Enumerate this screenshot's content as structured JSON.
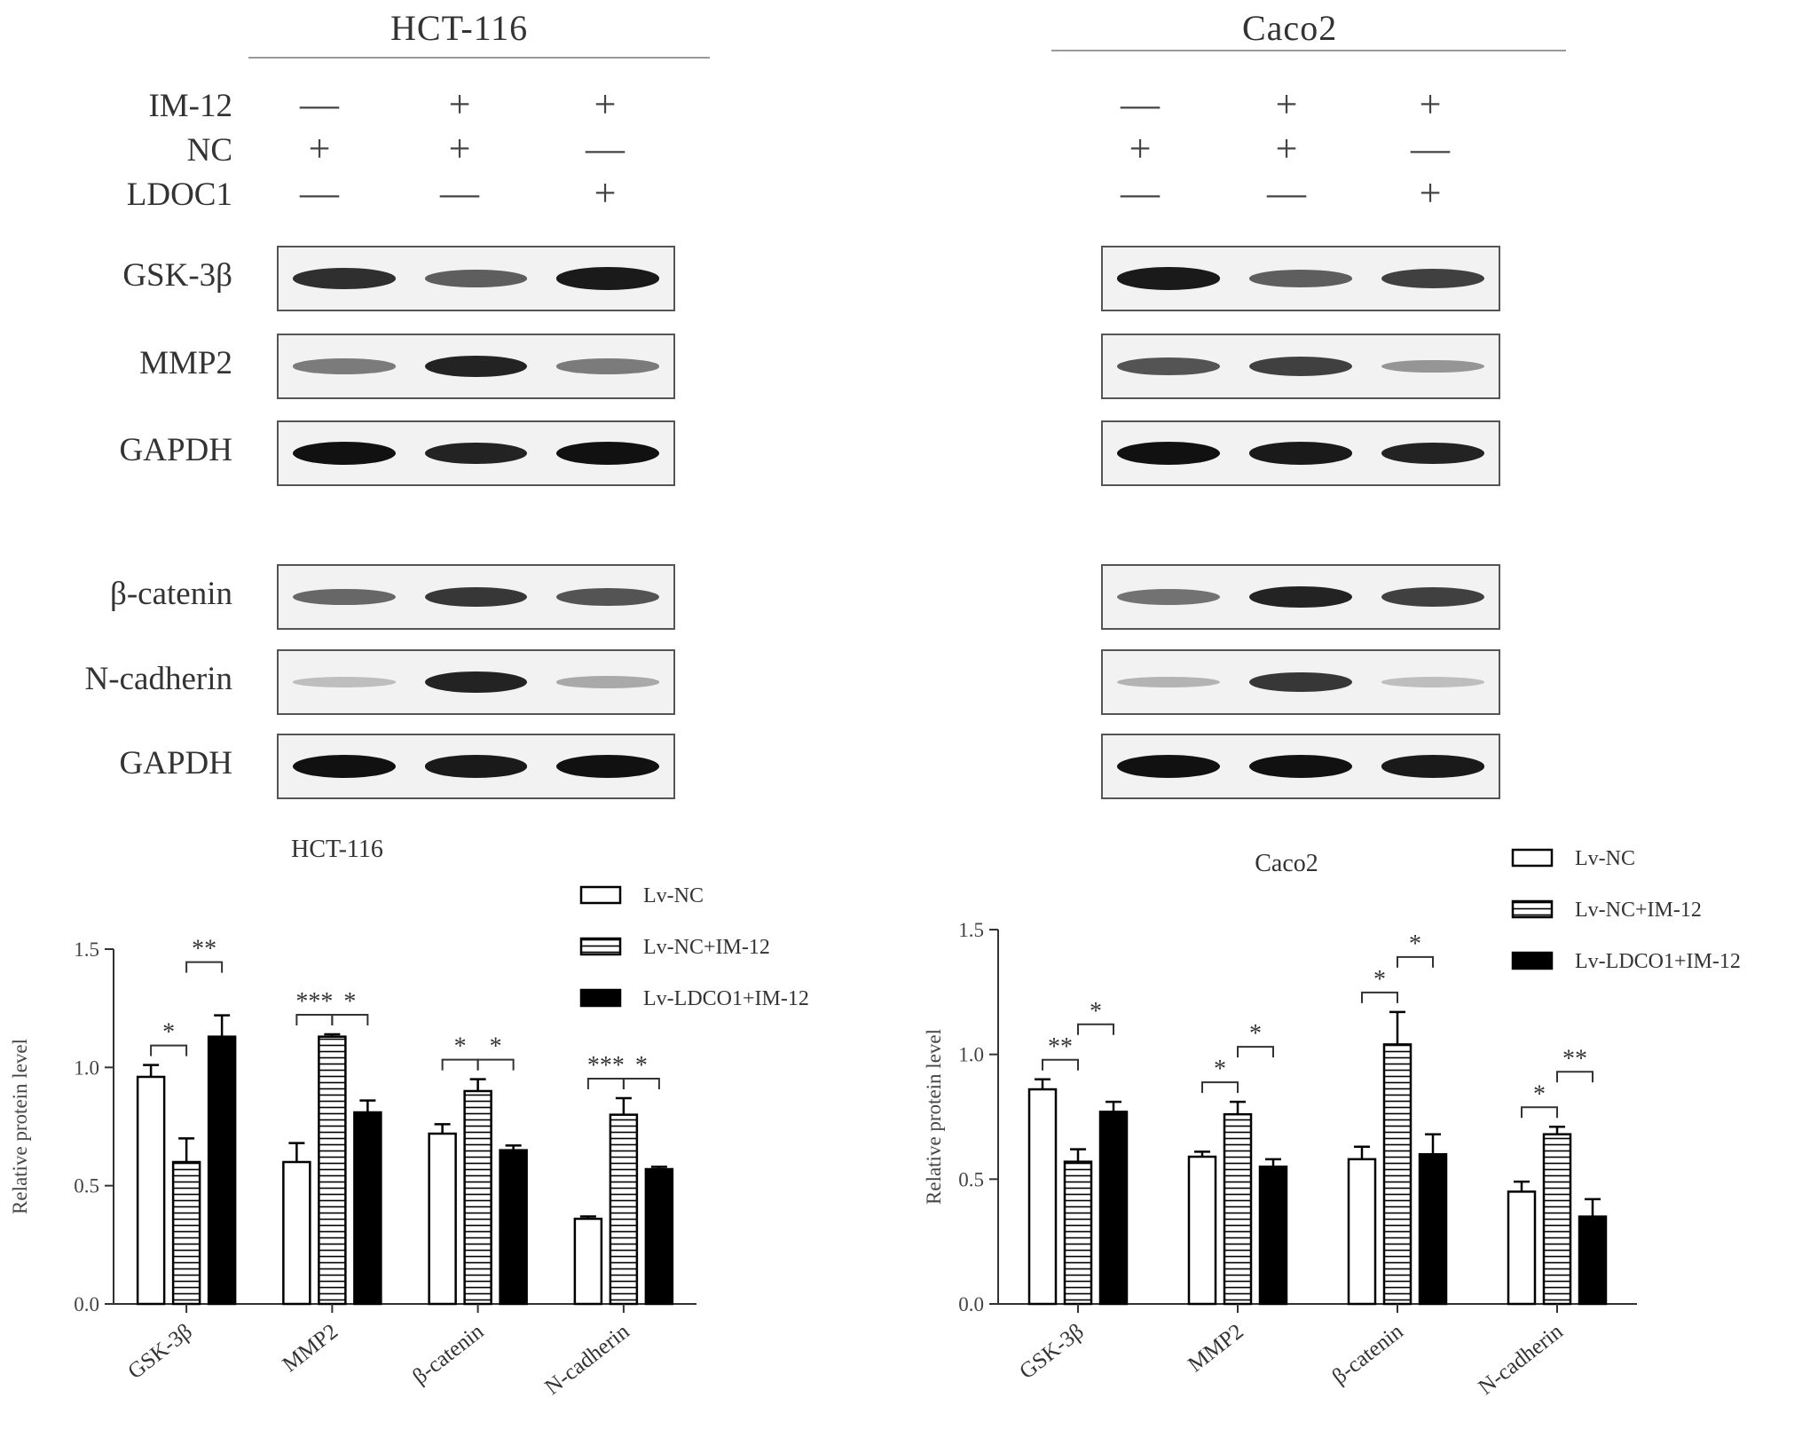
{
  "blots": [
    {
      "cell_line": "HCT-116",
      "conditions": [
        {
          "label": "IM-12",
          "signs": [
            "—",
            "+",
            "+"
          ]
        },
        {
          "label": "NC",
          "signs": [
            "+",
            "+",
            "—"
          ]
        },
        {
          "label": "LDOC1",
          "signs": [
            "—",
            "—",
            "+"
          ]
        }
      ],
      "rows": [
        {
          "label": "GSK-3β",
          "intensity": [
            0.85,
            0.6,
            0.95
          ]
        },
        {
          "label": "MMP2",
          "intensity": [
            0.45,
            0.9,
            0.45
          ]
        },
        {
          "label": "GAPDH",
          "intensity": [
            1.0,
            0.9,
            1.0
          ]
        },
        {
          "label": "β-catenin",
          "intensity": [
            0.55,
            0.8,
            0.65
          ]
        },
        {
          "label": "N-cadherin",
          "intensity": [
            0.1,
            0.9,
            0.2
          ]
        },
        {
          "label": "GAPDH",
          "intensity": [
            1.0,
            0.95,
            1.0
          ]
        }
      ]
    },
    {
      "cell_line": "Caco2",
      "conditions": [
        {
          "label": "",
          "signs": [
            "—",
            "+",
            "+"
          ]
        },
        {
          "label": "",
          "signs": [
            "+",
            "+",
            "—"
          ]
        },
        {
          "label": "",
          "signs": [
            "—",
            "—",
            "+"
          ]
        }
      ],
      "rows": [
        {
          "label": "",
          "intensity": [
            0.95,
            0.6,
            0.75
          ]
        },
        {
          "label": "",
          "intensity": [
            0.65,
            0.75,
            0.3
          ]
        },
        {
          "label": "",
          "intensity": [
            1.0,
            0.95,
            0.9
          ]
        },
        {
          "label": "",
          "intensity": [
            0.5,
            0.9,
            0.75
          ]
        },
        {
          "label": "",
          "intensity": [
            0.15,
            0.8,
            0.1
          ]
        },
        {
          "label": "",
          "intensity": [
            1.0,
            1.0,
            0.95
          ]
        }
      ]
    }
  ],
  "chart_data": [
    {
      "type": "bar",
      "title": "HCT-116",
      "xlabel": "",
      "ylabel": "Relative protein level",
      "ylim": [
        0,
        1.5
      ],
      "yticks": [
        "0.0",
        "0.5",
        "1.0",
        "1.5"
      ],
      "categories": [
        "GSK-3β",
        "MMP2",
        "β-catenin",
        "N-cadherin"
      ],
      "series": [
        {
          "name": "Lv-NC",
          "pattern": "open",
          "values": [
            0.96,
            0.6,
            0.72,
            0.36
          ],
          "errors": [
            0.05,
            0.08,
            0.04,
            0.01
          ]
        },
        {
          "name": "Lv-NC+IM-12",
          "pattern": "striped",
          "values": [
            0.6,
            1.13,
            0.9,
            0.8
          ],
          "errors": [
            0.1,
            0.01,
            0.05,
            0.07
          ]
        },
        {
          "name": "Lv-LDCO1+IM-12",
          "pattern": "solid",
          "values": [
            1.13,
            0.81,
            0.65,
            0.57
          ],
          "errors": [
            0.09,
            0.05,
            0.02,
            0.01
          ]
        }
      ],
      "annotations": [
        {
          "category": 0,
          "from": 0,
          "to": 1,
          "level": 0,
          "text": "*"
        },
        {
          "category": 0,
          "from": 1,
          "to": 2,
          "level": 1,
          "text": "**"
        },
        {
          "category": 1,
          "from": 0,
          "to": 1,
          "level": 0,
          "text": "***"
        },
        {
          "category": 1,
          "from": 1,
          "to": 2,
          "level": 0,
          "text": "*"
        },
        {
          "category": 2,
          "from": 0,
          "to": 1,
          "level": 0,
          "text": "*"
        },
        {
          "category": 2,
          "from": 1,
          "to": 2,
          "level": 0,
          "text": "*"
        },
        {
          "category": 3,
          "from": 0,
          "to": 1,
          "level": 0,
          "text": "***"
        },
        {
          "category": 3,
          "from": 1,
          "to": 2,
          "level": 0,
          "text": "*"
        }
      ],
      "legend_position": "top-right"
    },
    {
      "type": "bar",
      "title": "Caco2",
      "xlabel": "",
      "ylabel": "Relative protein level",
      "ylim": [
        0,
        1.5
      ],
      "yticks": [
        "0.0",
        "0.5",
        "1.0",
        "1.5"
      ],
      "categories": [
        "GSK-3β",
        "MMP2",
        "β-catenin",
        "N-cadherin"
      ],
      "series": [
        {
          "name": "Lv-NC",
          "pattern": "open",
          "values": [
            0.86,
            0.59,
            0.58,
            0.45
          ],
          "errors": [
            0.04,
            0.02,
            0.05,
            0.04
          ]
        },
        {
          "name": "Lv-NC+IM-12",
          "pattern": "striped",
          "values": [
            0.57,
            0.76,
            1.04,
            0.68
          ],
          "errors": [
            0.05,
            0.05,
            0.13,
            0.03
          ]
        },
        {
          "name": "Lv-LDCO1+IM-12",
          "pattern": "solid",
          "values": [
            0.77,
            0.55,
            0.6,
            0.35
          ],
          "errors": [
            0.04,
            0.03,
            0.08,
            0.07
          ]
        }
      ],
      "annotations": [
        {
          "category": 0,
          "from": 0,
          "to": 1,
          "level": 0,
          "text": "**"
        },
        {
          "category": 0,
          "from": 1,
          "to": 2,
          "level": 1,
          "text": "*"
        },
        {
          "category": 1,
          "from": 0,
          "to": 1,
          "level": 0,
          "text": "*"
        },
        {
          "category": 1,
          "from": 1,
          "to": 2,
          "level": 1,
          "text": "*"
        },
        {
          "category": 2,
          "from": 0,
          "to": 1,
          "level": 0,
          "text": "*"
        },
        {
          "category": 2,
          "from": 1,
          "to": 2,
          "level": 1,
          "text": "*"
        },
        {
          "category": 3,
          "from": 0,
          "to": 1,
          "level": 0,
          "text": "*"
        },
        {
          "category": 3,
          "from": 1,
          "to": 2,
          "level": 1,
          "text": "**"
        }
      ],
      "legend_position": "top-right"
    }
  ]
}
